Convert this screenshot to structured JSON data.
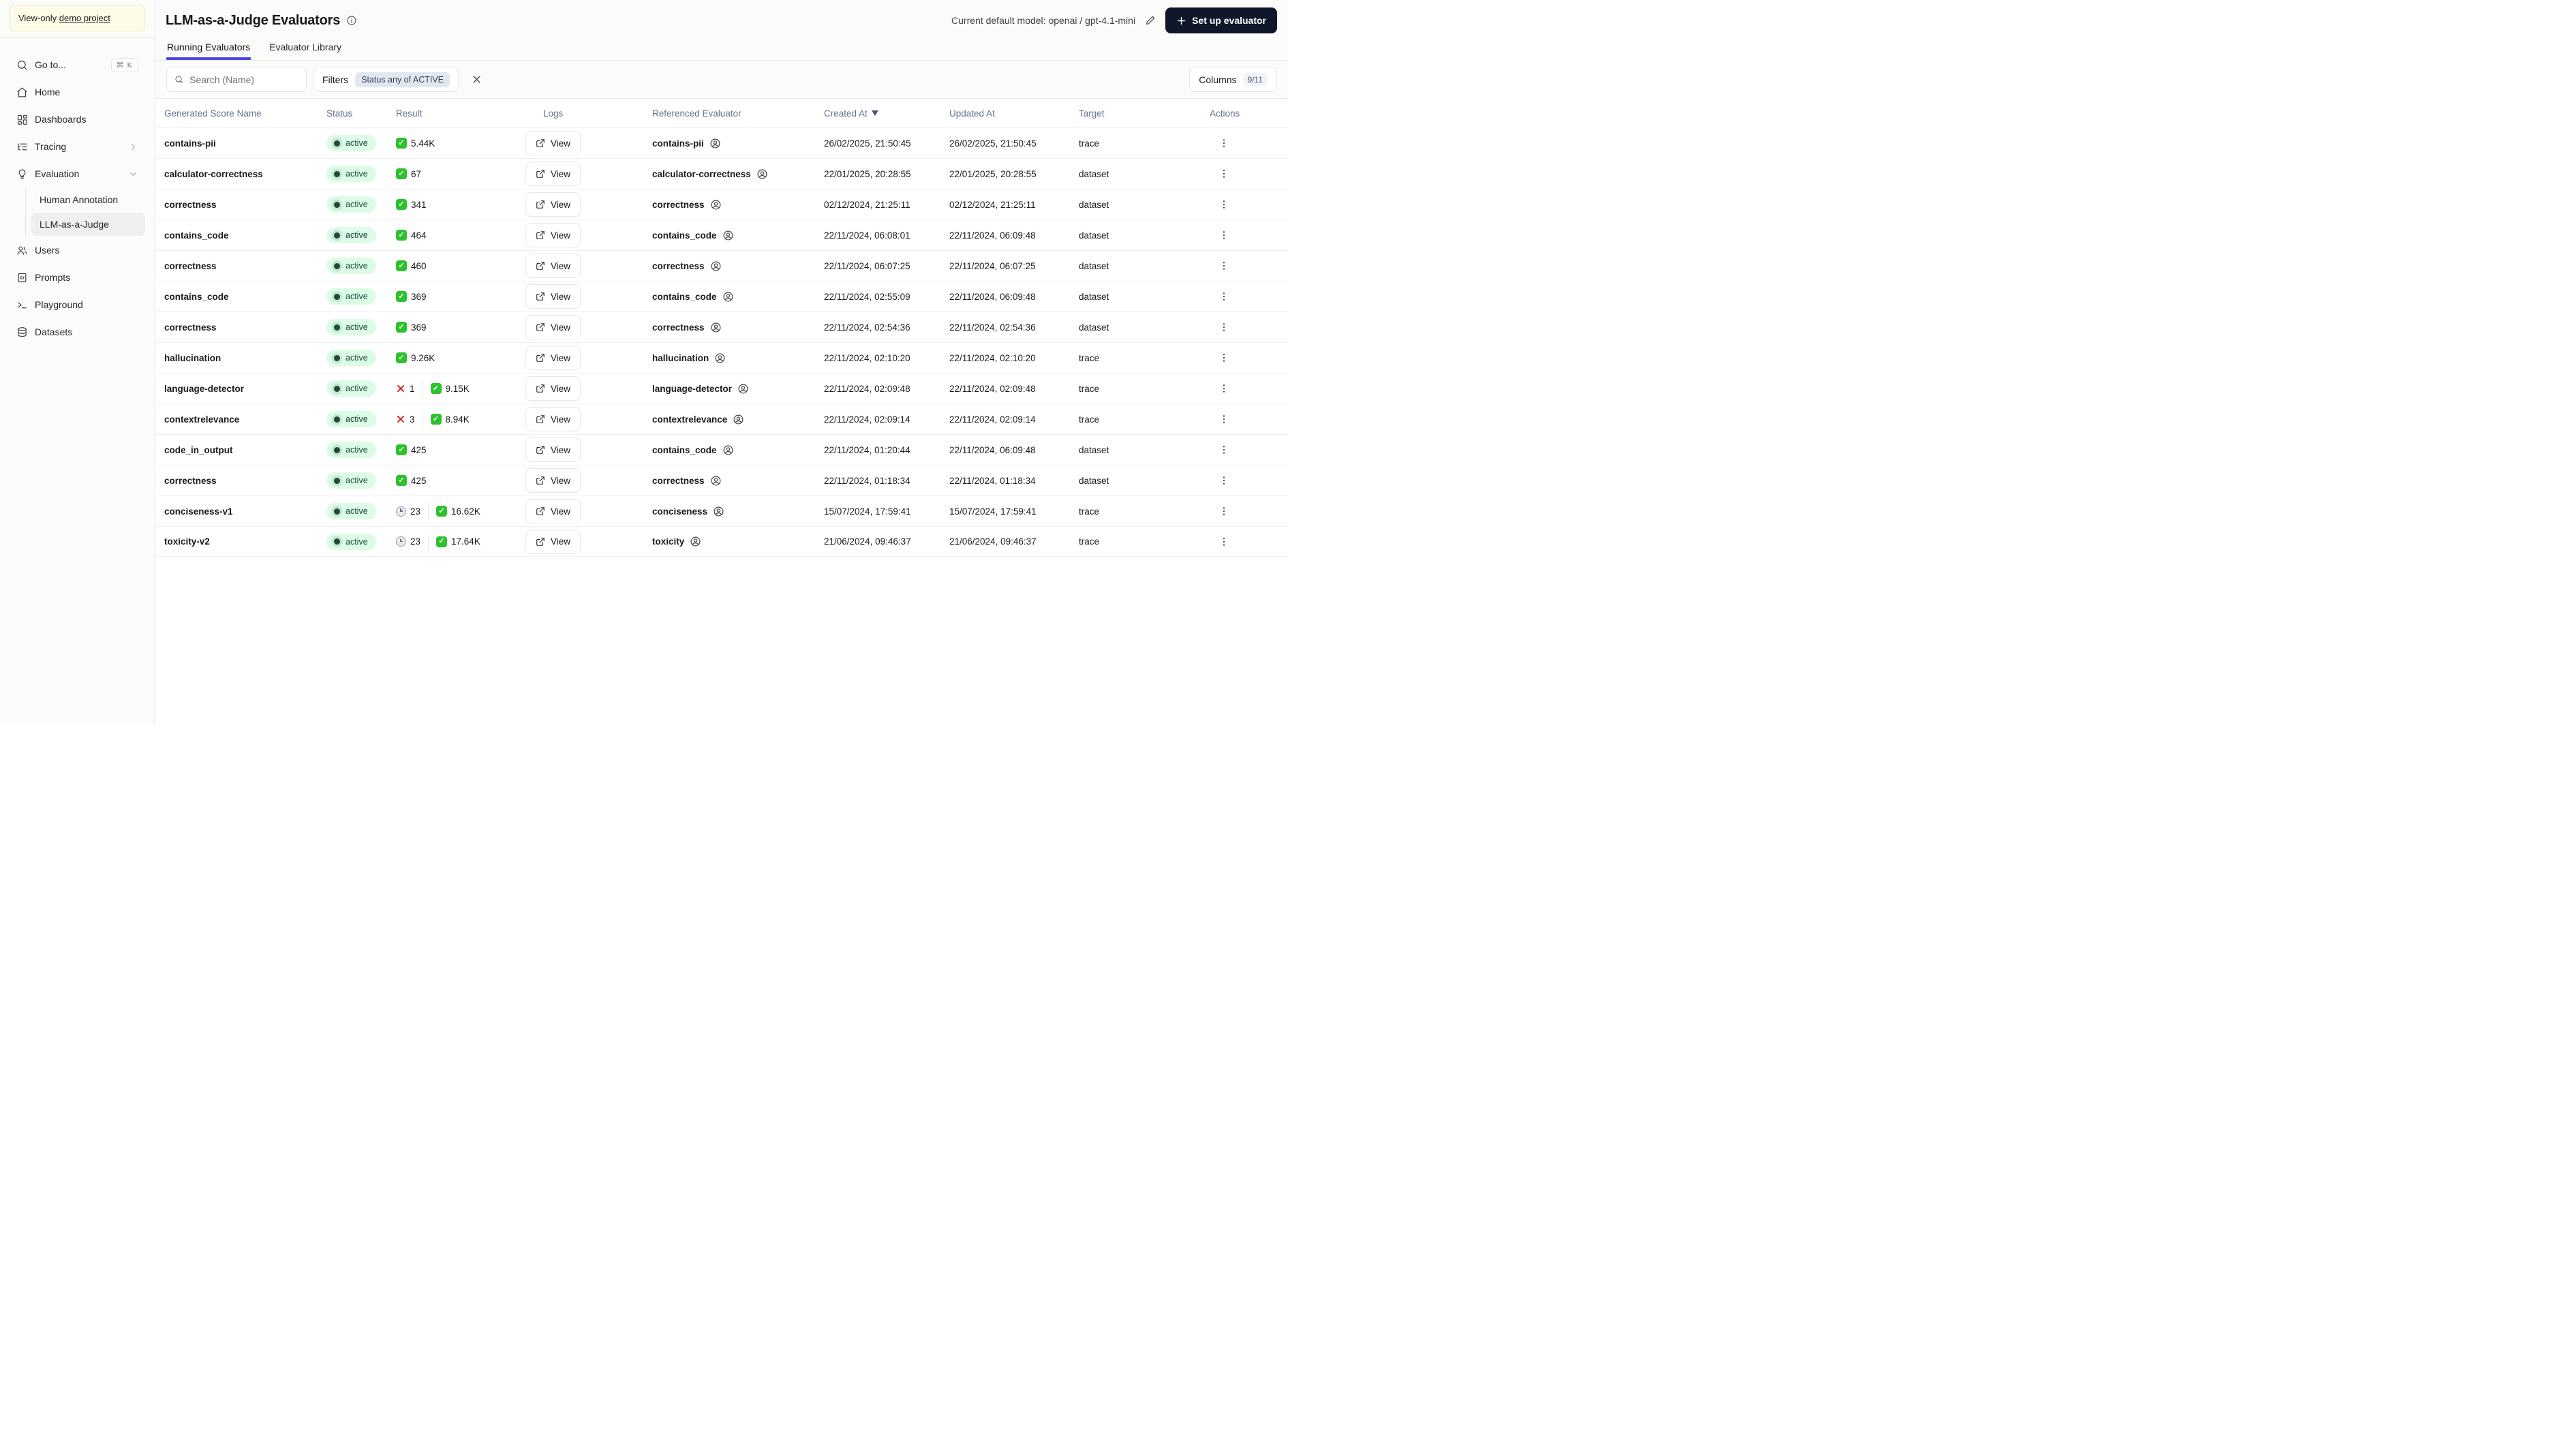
{
  "sidebar": {
    "banner": {
      "prefix": "View-only ",
      "link": "demo project"
    },
    "items": [
      {
        "label": "Go to...",
        "icon": "search",
        "shortcut": "⌘ K"
      },
      {
        "label": "Home",
        "icon": "home"
      },
      {
        "label": "Dashboards",
        "icon": "dashboards"
      },
      {
        "label": "Tracing",
        "icon": "tracing",
        "chevron": "right"
      },
      {
        "label": "Evaluation",
        "icon": "evaluation",
        "chevron": "down",
        "children": [
          {
            "label": "Human Annotation",
            "active": false
          },
          {
            "label": "LLM-as-a-Judge",
            "active": true
          }
        ]
      },
      {
        "label": "Users",
        "icon": "users"
      },
      {
        "label": "Prompts",
        "icon": "prompts"
      },
      {
        "label": "Playground",
        "icon": "playground"
      },
      {
        "label": "Datasets",
        "icon": "datasets"
      }
    ]
  },
  "header": {
    "title": "LLM-as-a-Judge Evaluators",
    "default_model_label": "Current default model: openai / gpt-4.1-mini",
    "setup_button": "Set up evaluator"
  },
  "tabs": [
    {
      "label": "Running Evaluators",
      "active": true
    },
    {
      "label": "Evaluator Library",
      "active": false
    }
  ],
  "toolbar": {
    "search_placeholder": "Search (Name)",
    "filters_label": "Filters",
    "filter_chip": "Status any of ACTIVE",
    "columns_label": "Columns",
    "columns_badge": "9/11"
  },
  "table": {
    "columns": [
      "Generated Score Name",
      "Status",
      "Result",
      "Logs",
      "Referenced Evaluator",
      "Created At",
      "Updated At",
      "Target",
      "Actions"
    ],
    "sorted_column": "Created At",
    "sort_direction": "desc",
    "view_label": "View",
    "rows": [
      {
        "name": "contains-pii",
        "status": "active",
        "result": [
          {
            "type": "success",
            "value": "5.44K"
          }
        ],
        "referenced": "contains-pii",
        "created_at": "26/02/2025, 21:50:45",
        "updated_at": "26/02/2025, 21:50:45",
        "target": "trace"
      },
      {
        "name": "calculator-correctness",
        "status": "active",
        "result": [
          {
            "type": "success",
            "value": "67"
          }
        ],
        "referenced": "calculator-correctness",
        "created_at": "22/01/2025, 20:28:55",
        "updated_at": "22/01/2025, 20:28:55",
        "target": "dataset"
      },
      {
        "name": "correctness",
        "status": "active",
        "result": [
          {
            "type": "success",
            "value": "341"
          }
        ],
        "referenced": "correctness",
        "created_at": "02/12/2024, 21:25:11",
        "updated_at": "02/12/2024, 21:25:11",
        "target": "dataset"
      },
      {
        "name": "contains_code",
        "status": "active",
        "result": [
          {
            "type": "success",
            "value": "464"
          }
        ],
        "referenced": "contains_code",
        "created_at": "22/11/2024, 06:08:01",
        "updated_at": "22/11/2024, 06:09:48",
        "target": "dataset"
      },
      {
        "name": "correctness",
        "status": "active",
        "result": [
          {
            "type": "success",
            "value": "460"
          }
        ],
        "referenced": "correctness",
        "created_at": "22/11/2024, 06:07:25",
        "updated_at": "22/11/2024, 06:07:25",
        "target": "dataset"
      },
      {
        "name": "contains_code",
        "status": "active",
        "result": [
          {
            "type": "success",
            "value": "369"
          }
        ],
        "referenced": "contains_code",
        "created_at": "22/11/2024, 02:55:09",
        "updated_at": "22/11/2024, 06:09:48",
        "target": "dataset"
      },
      {
        "name": "correctness",
        "status": "active",
        "result": [
          {
            "type": "success",
            "value": "369"
          }
        ],
        "referenced": "correctness",
        "created_at": "22/11/2024, 02:54:36",
        "updated_at": "22/11/2024, 02:54:36",
        "target": "dataset"
      },
      {
        "name": "hallucination",
        "status": "active",
        "result": [
          {
            "type": "success",
            "value": "9.26K"
          }
        ],
        "referenced": "hallucination",
        "created_at": "22/11/2024, 02:10:20",
        "updated_at": "22/11/2024, 02:10:20",
        "target": "trace"
      },
      {
        "name": "language-detector",
        "status": "active",
        "result": [
          {
            "type": "error",
            "value": "1"
          },
          {
            "type": "success",
            "value": "9.15K"
          }
        ],
        "referenced": "language-detector",
        "created_at": "22/11/2024, 02:09:48",
        "updated_at": "22/11/2024, 02:09:48",
        "target": "trace"
      },
      {
        "name": "contextrelevance",
        "status": "active",
        "result": [
          {
            "type": "error",
            "value": "3"
          },
          {
            "type": "success",
            "value": "8.94K"
          }
        ],
        "referenced": "contextrelevance",
        "created_at": "22/11/2024, 02:09:14",
        "updated_at": "22/11/2024, 02:09:14",
        "target": "trace"
      },
      {
        "name": "code_in_output",
        "status": "active",
        "result": [
          {
            "type": "success",
            "value": "425"
          }
        ],
        "referenced": "contains_code",
        "created_at": "22/11/2024, 01:20:44",
        "updated_at": "22/11/2024, 06:09:48",
        "target": "dataset"
      },
      {
        "name": "correctness",
        "status": "active",
        "result": [
          {
            "type": "success",
            "value": "425"
          }
        ],
        "referenced": "correctness",
        "created_at": "22/11/2024, 01:18:34",
        "updated_at": "22/11/2024, 01:18:34",
        "target": "dataset"
      },
      {
        "name": "conciseness-v1",
        "status": "active",
        "result": [
          {
            "type": "pending",
            "value": "23"
          },
          {
            "type": "success",
            "value": "16.62K"
          }
        ],
        "referenced": "conciseness",
        "created_at": "15/07/2024, 17:59:41",
        "updated_at": "15/07/2024, 17:59:41",
        "target": "trace"
      },
      {
        "name": "toxicity-v2",
        "status": "active",
        "result": [
          {
            "type": "pending",
            "value": "23"
          },
          {
            "type": "success",
            "value": "17.64K"
          }
        ],
        "referenced": "toxicity",
        "created_at": "21/06/2024, 09:46:37",
        "updated_at": "21/06/2024, 09:46:37",
        "target": "trace"
      }
    ]
  },
  "colors": {
    "accent_indigo": "#4f46e5",
    "primary_button": "#0f172a",
    "active_badge_bg": "#dcfce7",
    "active_badge_text": "#1f4a3e",
    "success_green": "#2dc22d",
    "error_red": "#dc2626",
    "banner_bg": "#fefce8"
  }
}
